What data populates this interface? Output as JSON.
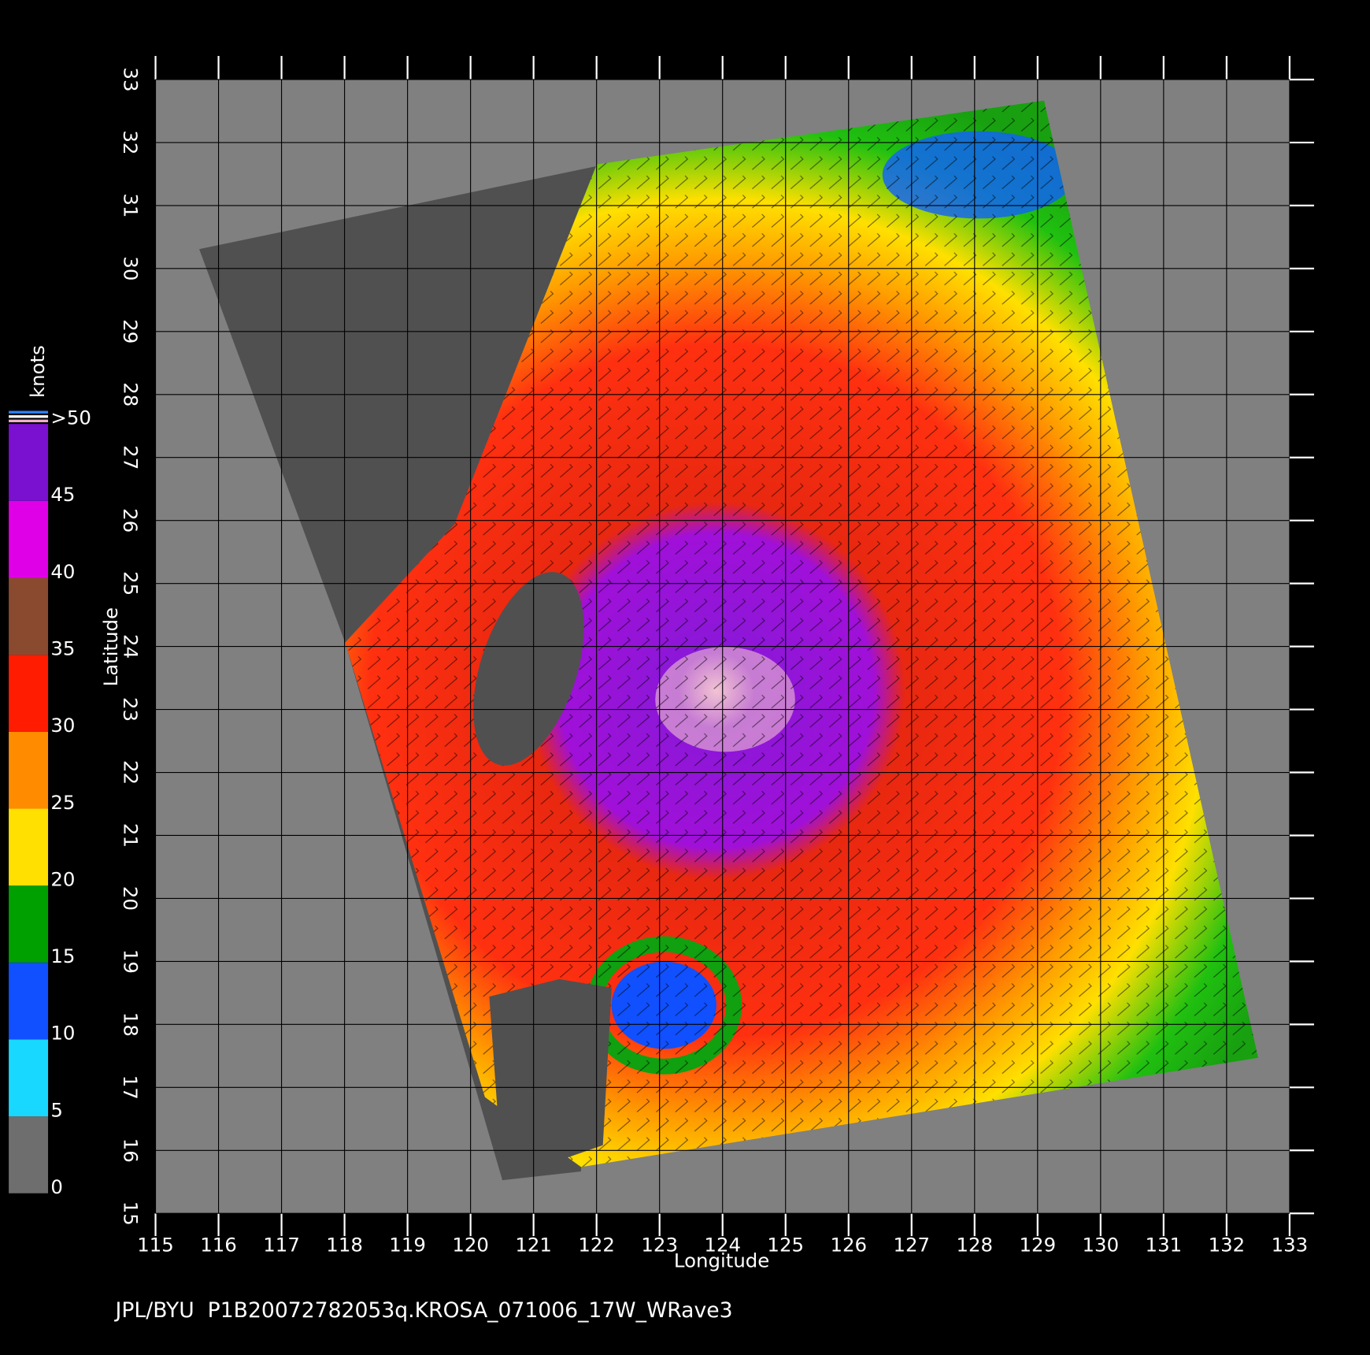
{
  "chart_data": {
    "type": "map",
    "x_label": "Longitude",
    "y_label": "Latitude",
    "xlim": [
      115,
      133
    ],
    "ylim": [
      15,
      33
    ],
    "xticks": [
      115,
      116,
      117,
      118,
      119,
      120,
      121,
      122,
      123,
      124,
      125,
      126,
      127,
      128,
      129,
      130,
      131,
      132,
      133
    ],
    "yticks": [
      15,
      16,
      17,
      18,
      19,
      20,
      21,
      22,
      23,
      24,
      25,
      26,
      27,
      28,
      29,
      30,
      31,
      32,
      33
    ],
    "grid": true,
    "colorbar": {
      "label": "knots",
      "ticks": [
        0,
        5,
        10,
        15,
        20,
        25,
        30,
        35,
        40,
        45,
        {
          "value": 50,
          "label": ">50"
        }
      ],
      "colors": [
        "#6e6e6e",
        "#18d8ff",
        "#1050ff",
        "#00a000",
        "#ffe000",
        "#ff8c00",
        "#ff1c00",
        "#8a4a30",
        "#e000e8",
        "#7a10d0"
      ]
    },
    "footer": "JPL/BYU  P1B20072782053q.KROSA_071006_17W_WRave3"
  }
}
